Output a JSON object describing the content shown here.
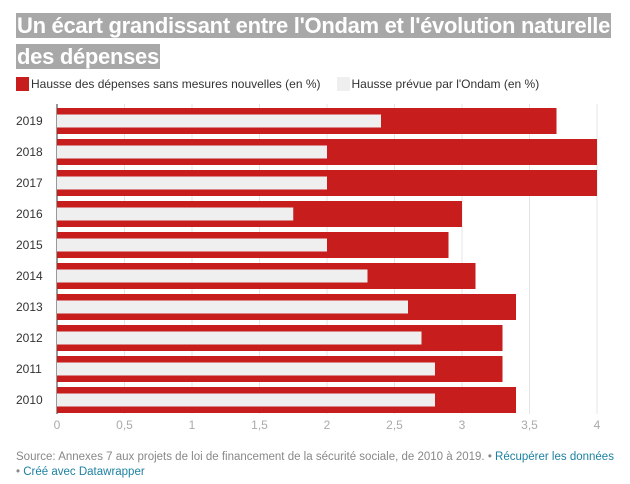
{
  "title": "Un écart grandissant entre l'Ondam et l'évolution naturelle des dépenses",
  "footer": {
    "source": "Source: Annexes 7 aux projets de loi de financement de la sécurité sociale, de 2010 à 2019.",
    "sep": " • ",
    "download_link": "Récupérer les données",
    "made_with": "Créé avec Datawrapper"
  },
  "colors": {
    "red": "#c71e1d",
    "light": "#efefef"
  },
  "chart_data": {
    "type": "bar",
    "orientation": "horizontal",
    "title": "Un écart grandissant entre l'Ondam et l'évolution naturelle des dépenses",
    "categories": [
      "2019",
      "2018",
      "2017",
      "2016",
      "2015",
      "2014",
      "2013",
      "2012",
      "2011",
      "2010"
    ],
    "series": [
      {
        "name": "Hausse des dépenses sans mesures nouvelles (en %)",
        "color": "#c71e1d",
        "values": [
          3.7,
          4.0,
          4.0,
          3.0,
          2.9,
          3.1,
          3.4,
          3.3,
          3.3,
          3.4
        ]
      },
      {
        "name": "Hausse prévue par l'Ondam (en %)",
        "color": "#efefef",
        "values": [
          2.4,
          2.0,
          2.0,
          1.75,
          2.0,
          2.3,
          2.6,
          2.7,
          2.8,
          2.8
        ]
      }
    ],
    "xlim": [
      0,
      4
    ],
    "xticks": [
      "0",
      "0,5",
      "1",
      "1,5",
      "2",
      "2,5",
      "3",
      "3,5",
      "4"
    ],
    "grid": true,
    "legend": "top-left"
  }
}
